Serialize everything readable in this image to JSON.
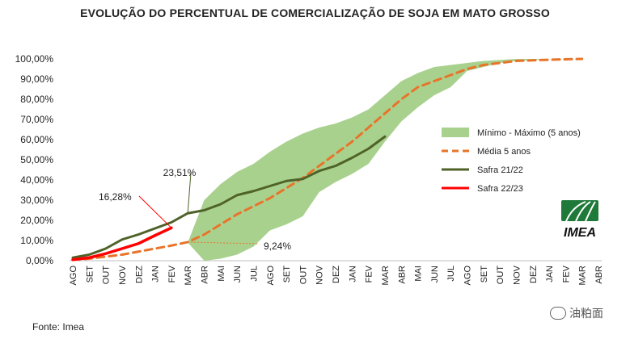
{
  "header": {
    "title": "EVOLUÇÃO DO PERCENTUAL DE COMERCIALIZAÇÃO DE SOJA EM MATO GROSSO"
  },
  "footer": {
    "source": "Fonte: Imea",
    "watermark": "油粕面"
  },
  "logo": {
    "text": "IMEA",
    "color": "#1f7a3a"
  },
  "chart_data": {
    "type": "line",
    "categories": [
      "AGO",
      "SET",
      "OUT",
      "NOV",
      "DEZ",
      "JAN",
      "FEV",
      "MAR",
      "ABR",
      "MAI",
      "JUN",
      "JUL",
      "AGO",
      "SET",
      "OUT",
      "NOV",
      "DEZ",
      "JAN",
      "FEV",
      "MAR",
      "ABR",
      "MAI",
      "JUN",
      "JUL",
      "AGO",
      "SET",
      "OUT",
      "NOV",
      "DEZ",
      "JAN",
      "FEV",
      "MAR",
      "ABR"
    ],
    "ylim": [
      0,
      100
    ],
    "yticks": [
      "0,00%",
      "10,00%",
      "20,00%",
      "30,00%",
      "40,00%",
      "50,00%",
      "60,00%",
      "70,00%",
      "80,00%",
      "90,00%",
      "100,00%"
    ],
    "band": {
      "name": "Mínimo - Máximo (5 anos)",
      "color": "#a9d18e",
      "start_index": 7,
      "min": [
        9,
        0,
        1,
        3,
        7,
        15,
        18,
        22,
        34,
        39,
        43,
        48,
        59,
        69,
        76,
        82,
        86,
        94,
        96,
        98,
        99,
        99.5,
        100,
        100,
        100,
        100
      ],
      "max": [
        9,
        30,
        38,
        44,
        48,
        54,
        59,
        63,
        66,
        68,
        71,
        75,
        82,
        89,
        93,
        96,
        97,
        98,
        99,
        99.5,
        100,
        100,
        100,
        100,
        100,
        100
      ]
    },
    "series": [
      {
        "name": "Média 5 anos",
        "color": "#e8742a",
        "dashed": true,
        "values": [
          0.5,
          1,
          2,
          3,
          4.5,
          6,
          7.5,
          9.24,
          13,
          18,
          23,
          27,
          31,
          36,
          41,
          47,
          53,
          59,
          66,
          73,
          80,
          86,
          89,
          92,
          95,
          97,
          98,
          99,
          99.3,
          99.6,
          99.8,
          100,
          null
        ]
      },
      {
        "name": "Safra 21/22",
        "color": "#4f6228",
        "dashed": false,
        "values": [
          1.5,
          3,
          6,
          10.5,
          13,
          16,
          19,
          23.51,
          25,
          28,
          32.5,
          34.5,
          37,
          39.5,
          40.5,
          44.5,
          47,
          51,
          55.5,
          61.5,
          null,
          null,
          null,
          null,
          null,
          null,
          null,
          null,
          null,
          null,
          null,
          null,
          null
        ]
      },
      {
        "name": "Safra 22/23",
        "color": "#ff0000",
        "dashed": false,
        "values": [
          0.5,
          1.5,
          3.5,
          6,
          8.5,
          12.5,
          16.28,
          null,
          null,
          null,
          null,
          null,
          null,
          null,
          null,
          null,
          null,
          null,
          null,
          null,
          null,
          null,
          null,
          null,
          null,
          null,
          null,
          null,
          null,
          null,
          null,
          null,
          null
        ]
      }
    ],
    "annotations": [
      {
        "text": "23,51%",
        "series": "Safra 21/22",
        "index": 7
      },
      {
        "text": "16,28%",
        "series": "Safra 22/23",
        "index": 6
      },
      {
        "text": "9,24%",
        "series": "Média 5 anos",
        "index": 7
      }
    ],
    "legend_position": "right"
  }
}
